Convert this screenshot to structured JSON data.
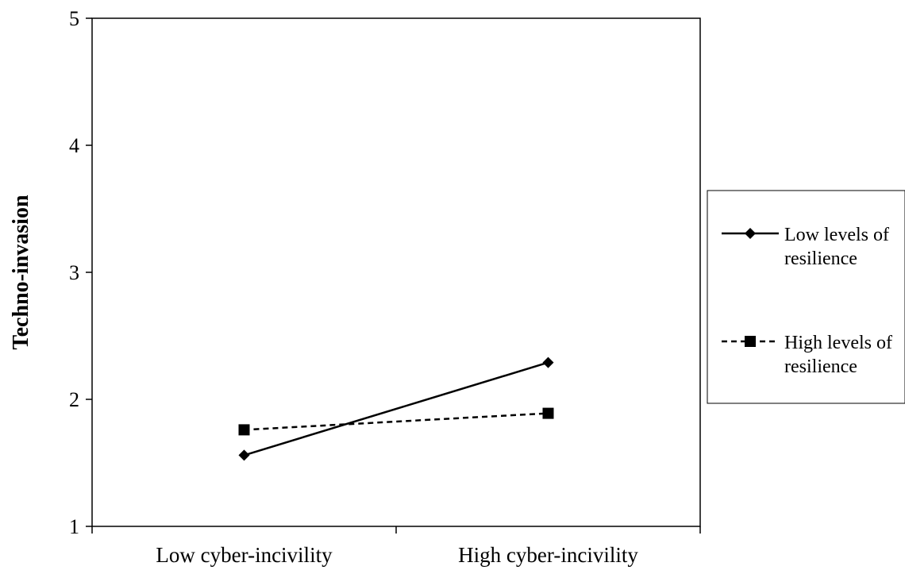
{
  "chart_data": {
    "type": "line",
    "title": "",
    "xlabel": "",
    "ylabel": "Techno-invasion",
    "categories": [
      "Low cyber-incivility",
      "High cyber-incivility"
    ],
    "ylim": [
      1,
      5
    ],
    "yticks": [
      "1",
      "2",
      "3",
      "4",
      "5"
    ],
    "grid": false,
    "legend_position": "right",
    "series": [
      {
        "name": "Low levels of resilience",
        "legend_lines": [
          "Low levels of",
          "resilience"
        ],
        "values": [
          1.56,
          2.29
        ],
        "line_style": "solid",
        "marker": "diamond",
        "color": "#000000"
      },
      {
        "name": "High levels of resilience",
        "legend_lines": [
          "High levels of",
          "resilience"
        ],
        "values": [
          1.76,
          1.89
        ],
        "line_style": "dashed",
        "marker": "square",
        "color": "#000000"
      }
    ]
  }
}
